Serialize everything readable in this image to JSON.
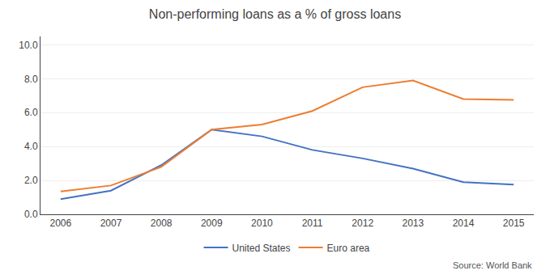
{
  "chart_data": {
    "type": "line",
    "title": "Non-performing loans as a % of gross loans",
    "x": [
      2006,
      2007,
      2008,
      2009,
      2010,
      2011,
      2012,
      2013,
      2014,
      2015
    ],
    "series": [
      {
        "name": "United States",
        "color": "#4472C4",
        "values": [
          0.9,
          1.4,
          2.9,
          5.0,
          4.6,
          3.8,
          3.3,
          2.7,
          1.9,
          1.75
        ]
      },
      {
        "name": "Euro area",
        "color": "#ED7D31",
        "values": [
          1.35,
          1.7,
          2.8,
          5.0,
          5.3,
          6.1,
          7.5,
          7.9,
          6.8,
          6.75
        ]
      }
    ],
    "xlim": [
      2005.6,
      2015.4
    ],
    "xticks": [
      2006,
      2007,
      2008,
      2009,
      2010,
      2011,
      2012,
      2013,
      2014,
      2015
    ],
    "ylim": [
      0.0,
      10.5
    ],
    "yticks": [
      {
        "value": 0.0,
        "label": "0.0"
      },
      {
        "value": 2.0,
        "label": "2.0"
      },
      {
        "value": 4.0,
        "label": "4.0"
      },
      {
        "value": 6.0,
        "label": "6.0"
      },
      {
        "value": 8.0,
        "label": "8.0"
      },
      {
        "value": 10.0,
        "label": "10.0"
      }
    ],
    "grid": "y",
    "legend": "bottom",
    "annotation": "Source: World Bank"
  }
}
